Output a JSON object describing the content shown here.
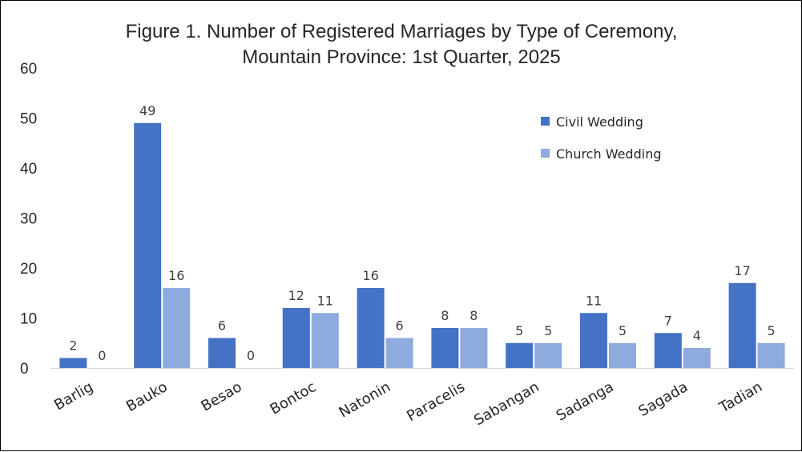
{
  "chart_data": {
    "type": "bar",
    "title_line1": "Figure 1. Number of Registered Marriages by Type of Ceremony,",
    "title_line2": "Mountain Province: 1st Quarter, 2025",
    "categories": [
      "Barlig",
      "Bauko",
      "Besao",
      "Bontoc",
      "Natonin",
      "Paracelis",
      "Sabangan",
      "Sadanga",
      "Sagada",
      "Tadian"
    ],
    "series": [
      {
        "name": "Civil Wedding",
        "color": "#4472C4",
        "values": [
          2,
          49,
          6,
          12,
          16,
          8,
          5,
          11,
          7,
          17
        ]
      },
      {
        "name": "Church Wedding",
        "color": "#8FAADC",
        "values": [
          0,
          16,
          0,
          11,
          6,
          8,
          5,
          5,
          4,
          5
        ]
      }
    ],
    "ylim": [
      0,
      60
    ],
    "yticks": [
      0,
      10,
      20,
      30,
      40,
      50,
      60
    ],
    "grid": false,
    "legend_position": "top-right"
  }
}
